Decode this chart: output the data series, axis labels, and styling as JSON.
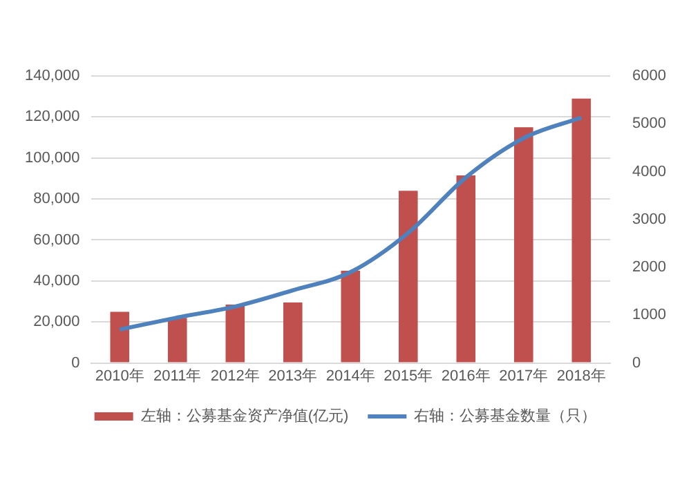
{
  "chart_data": {
    "type": "bar",
    "categories": [
      "2010年",
      "2011年",
      "2012年",
      "2013年",
      "2014年",
      "2015年",
      "2016年",
      "2017年",
      "2018年"
    ],
    "series": [
      {
        "name": "左轴：公募基金资产净值(亿元)",
        "color": "#c0504d",
        "values": [
          25000,
          22000,
          28500,
          29500,
          45000,
          84000,
          91500,
          115000,
          129000
        ]
      },
      {
        "name": "右轴：公募基金数量（只）",
        "type": "line",
        "axis": "y2",
        "color": "#4f81bd",
        "values": [
          700,
          950,
          1180,
          1520,
          1900,
          2720,
          3880,
          4700,
          5130
        ]
      }
    ],
    "ylim": [
      0,
      140000
    ],
    "yticks": [
      0,
      {
        "value": 20000,
        "label": "20,000"
      },
      {
        "value": 40000,
        "label": "40,000"
      },
      {
        "value": 60000,
        "label": "60,000"
      },
      {
        "value": 80000,
        "label": "80,000"
      },
      {
        "value": 100000,
        "label": "100,000"
      },
      {
        "value": 120000,
        "label": "120,000"
      },
      {
        "value": 140000,
        "label": "140,000"
      }
    ],
    "y2lim": [
      0,
      6000
    ],
    "y2ticks": [
      0,
      1000,
      2000,
      3000,
      4000,
      5000,
      6000
    ],
    "grid": "y",
    "legend": "bottom",
    "marker": "none",
    "line_style": "solid"
  }
}
